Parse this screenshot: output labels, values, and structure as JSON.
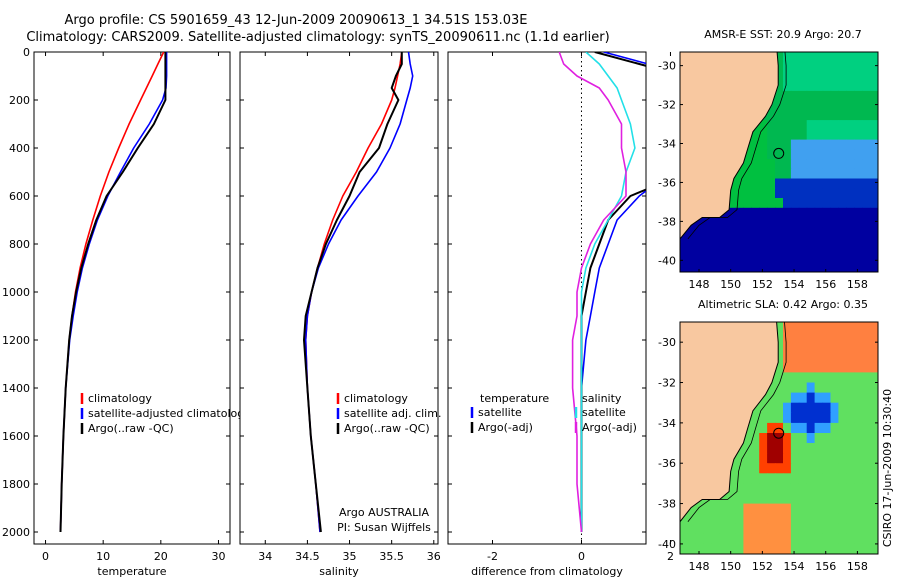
{
  "header": {
    "title_line1": "Argo profile: CS 5901659_43 12-Jun-2009 20090613_1 34.51S 153.03E",
    "title_line2": "Climatology: CARS2009. Satellite-adjusted climatology: synTS_20090611.nc (1.1d earlier)"
  },
  "colors": {
    "climatology": "#ff0000",
    "satellite": "#0000ff",
    "argo": "#000000",
    "sal_satellite": "#22e0e8",
    "sal_argo": "#e020e0",
    "land": "#f8c8a0",
    "coast": "#000000"
  },
  "chart_data": [
    {
      "id": "temperature",
      "type": "line",
      "xlabel": "temperature",
      "xlim": [
        -2,
        32
      ],
      "ylim": [
        2050,
        0
      ],
      "x_ticks": [
        0,
        10,
        20,
        30
      ],
      "y_ticks": [
        0,
        200,
        400,
        600,
        800,
        1000,
        1200,
        1400,
        1600,
        1800,
        2000
      ],
      "legend": [
        "climatology",
        "satellite-adjusted climatology",
        "Argo(..raw -QC)"
      ],
      "series": [
        {
          "name": "climatology",
          "color": "climatology",
          "depth": [
            0,
            50,
            100,
            150,
            200,
            300,
            400,
            500,
            600,
            700,
            800,
            900,
            1000,
            1100,
            1200,
            1400,
            1600,
            1800,
            2000
          ],
          "values": [
            20.5,
            19.5,
            18.5,
            17.5,
            16.5,
            14.5,
            12.7,
            11.0,
            9.5,
            8.2,
            7.0,
            6.0,
            5.2,
            4.6,
            4.1,
            3.5,
            3.1,
            2.8,
            2.6
          ]
        },
        {
          "name": "satellite-adjusted climatology",
          "color": "satellite",
          "depth": [
            0,
            50,
            100,
            150,
            200,
            300,
            400,
            500,
            600,
            700,
            800,
            900,
            1000,
            1100,
            1200,
            1400,
            1600,
            1800,
            2000
          ],
          "values": [
            21.0,
            21.0,
            21.0,
            20.9,
            20.3,
            18.0,
            15.3,
            13.0,
            10.8,
            9.0,
            7.6,
            6.4,
            5.5,
            4.8,
            4.2,
            3.5,
            3.1,
            2.8,
            2.6
          ]
        },
        {
          "name": "Argo(..raw -QC)",
          "color": "argo",
          "depth": [
            0,
            50,
            100,
            150,
            200,
            300,
            400,
            500,
            600,
            700,
            800,
            900,
            1000,
            1100,
            1200,
            1400,
            1600,
            1800,
            2000
          ],
          "values": [
            20.8,
            20.8,
            20.8,
            20.8,
            20.8,
            18.8,
            16.0,
            13.4,
            10.6,
            8.8,
            7.4,
            6.2,
            5.3,
            4.6,
            4.1,
            3.5,
            3.1,
            2.8,
            2.6
          ]
        }
      ]
    },
    {
      "id": "salinity",
      "type": "line",
      "xlabel": "salinity",
      "xlim": [
        33.7,
        36.05
      ],
      "ylim": [
        2050,
        0
      ],
      "x_ticks": [
        34,
        34.5,
        35,
        35.5,
        36
      ],
      "legend": [
        "climatology",
        "satellite adj. clim.",
        "Argo(..raw -QC)"
      ],
      "notes": [
        "Argo AUSTRALIA",
        "PI: Susan Wijffels"
      ],
      "series": [
        {
          "name": "climatology",
          "color": "climatology",
          "depth": [
            0,
            50,
            100,
            150,
            200,
            300,
            400,
            500,
            600,
            700,
            800,
            900,
            1000,
            1100,
            1200,
            1400,
            1600,
            1800,
            2000
          ],
          "values": [
            35.62,
            35.6,
            35.57,
            35.54,
            35.5,
            35.38,
            35.22,
            35.08,
            34.92,
            34.8,
            34.7,
            34.62,
            34.55,
            34.5,
            34.48,
            34.5,
            34.54,
            34.6,
            34.65
          ]
        },
        {
          "name": "satellite adj. clim.",
          "color": "satellite",
          "depth": [
            0,
            50,
            100,
            150,
            200,
            300,
            400,
            500,
            600,
            700,
            800,
            900,
            1000,
            1100,
            1200,
            1400,
            1600,
            1800,
            2000
          ],
          "values": [
            35.7,
            35.72,
            35.75,
            35.72,
            35.68,
            35.6,
            35.48,
            35.32,
            35.1,
            34.9,
            34.75,
            34.63,
            34.55,
            34.5,
            34.48,
            34.5,
            34.54,
            34.6,
            34.65
          ]
        },
        {
          "name": "Argo(..raw -QC)",
          "color": "argo",
          "depth": [
            0,
            50,
            100,
            150,
            200,
            300,
            400,
            500,
            600,
            700,
            800,
            900,
            1000,
            1100,
            1200,
            1400,
            1600,
            1800,
            2000
          ],
          "values": [
            35.62,
            35.62,
            35.55,
            35.5,
            35.58,
            35.45,
            35.35,
            35.12,
            35.0,
            34.85,
            34.72,
            34.62,
            34.55,
            34.48,
            34.46,
            34.5,
            34.54,
            34.6,
            34.66
          ]
        }
      ]
    },
    {
      "id": "difference",
      "type": "line",
      "xlabel": "difference from climatology",
      "xlim": [
        -3,
        1.45
      ],
      "ylim": [
        2050,
        0
      ],
      "x_ticks": [
        -2,
        0,
        2
      ],
      "legend_left_title": "temperature",
      "legend_right_title": "salinity",
      "legend": [
        "satellite",
        "Argo(-adj)",
        "satellite",
        "Argo(-adj)"
      ],
      "series": [
        {
          "name": "satellite",
          "quantity": "temperature",
          "color": "satellite",
          "depth": [
            0,
            50,
            100,
            150,
            200,
            300,
            400,
            500,
            600,
            700,
            800,
            900,
            1000,
            1100,
            1200,
            1400,
            1600,
            1800,
            2000
          ],
          "values": [
            0.5,
            1.5,
            2.5,
            3.4,
            3.8,
            3.5,
            2.6,
            2.0,
            1.3,
            0.8,
            0.6,
            0.4,
            0.3,
            0.2,
            0.1,
            0.0,
            0.0,
            0.0,
            0.0
          ]
        },
        {
          "name": "Argo(-adj)",
          "quantity": "temperature",
          "color": "argo",
          "depth": [
            0,
            50,
            100,
            150,
            200,
            300,
            400,
            500,
            600,
            700,
            800,
            900,
            1000,
            1100,
            1200,
            1400,
            1600,
            1800,
            2000
          ],
          "values": [
            0.3,
            1.3,
            2.3,
            3.3,
            4.3,
            4.3,
            3.3,
            2.4,
            1.1,
            0.6,
            0.4,
            0.2,
            0.1,
            0.0,
            0.0,
            0.0,
            0.0,
            0.0,
            0.0
          ]
        },
        {
          "name": "satellite",
          "quantity": "salinity",
          "color": "sal_satellite",
          "depth": [
            0,
            50,
            100,
            150,
            200,
            300,
            400,
            500,
            600,
            700,
            800,
            900,
            1000,
            1100,
            1200,
            1400,
            1600,
            1800,
            2000
          ],
          "values": [
            0.1,
            0.4,
            0.6,
            0.8,
            0.9,
            1.1,
            1.2,
            1.0,
            0.9,
            0.6,
            0.3,
            0.1,
            0.0,
            0.0,
            0.0,
            0.0,
            0.0,
            0.0,
            0.0
          ]
        },
        {
          "name": "Argo(-adj)",
          "quantity": "salinity",
          "color": "sal_argo",
          "depth": [
            0,
            50,
            100,
            150,
            200,
            300,
            400,
            500,
            600,
            700,
            800,
            900,
            1000,
            1100,
            1200,
            1400,
            1600,
            1800,
            2000
          ],
          "values": [
            -0.5,
            -0.4,
            -0.1,
            0.4,
            0.6,
            0.9,
            0.9,
            1.0,
            1.0,
            0.5,
            0.2,
            0.0,
            -0.1,
            -0.1,
            -0.2,
            -0.2,
            -0.1,
            -0.1,
            0.0
          ]
        }
      ]
    }
  ],
  "maps": [
    {
      "id": "sst",
      "title": "AMSR-E SST: 20.9 Argo: 20.7",
      "lat_ticks": [
        "-30",
        "-32",
        "-34",
        "-36",
        "-38",
        "-40"
      ],
      "lon_ticks": [
        "148",
        "150",
        "152",
        "154",
        "156",
        "158"
      ],
      "marker": {
        "lon": 153.03,
        "lat": -34.51
      }
    },
    {
      "id": "sla",
      "title": "Altimetric SLA: 0.42 Argo: 0.35",
      "lat_ticks": [
        "-30",
        "-32",
        "-34",
        "-36",
        "-38",
        "-40"
      ],
      "lon_ticks": [
        "148",
        "150",
        "152",
        "154",
        "156",
        "158"
      ],
      "marker": {
        "lon": 153.03,
        "lat": -34.51
      }
    }
  ],
  "side_label": "CSIRO 17-Jun-2009 10:30:40"
}
